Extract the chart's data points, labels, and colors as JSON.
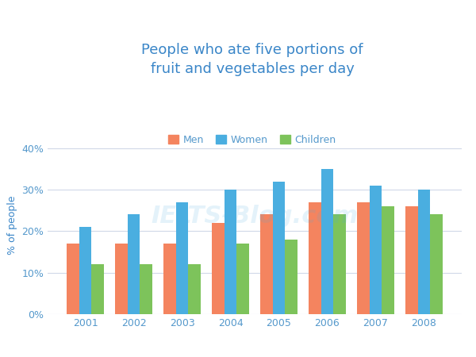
{
  "title": "People who ate five portions of\nfruit and vegetables per day",
  "ylabel": "% of people",
  "years": [
    2001,
    2002,
    2003,
    2004,
    2005,
    2006,
    2007,
    2008
  ],
  "men": [
    17,
    17,
    17,
    22,
    24,
    27,
    27,
    26
  ],
  "women": [
    21,
    24,
    27,
    30,
    32,
    35,
    31,
    30
  ],
  "children": [
    12,
    12,
    12,
    17,
    18,
    24,
    26,
    24
  ],
  "colors": {
    "men": "#F4845F",
    "women": "#4AAEE0",
    "children": "#7DC35B"
  },
  "yticks": [
    0,
    10,
    20,
    30,
    40
  ],
  "ytick_labels": [
    "0%",
    "10%",
    "20%",
    "30%",
    "40%"
  ],
  "ylim": [
    0,
    43
  ],
  "background_color": "#ffffff",
  "title_color": "#3A86C8",
  "axis_label_color": "#3A86C8",
  "tick_color": "#5599CC",
  "grid_color": "#d0d8e8",
  "legend_labels": [
    "Men",
    "Women",
    "Children"
  ],
  "title_fontsize": 13,
  "ylabel_fontsize": 9,
  "tick_fontsize": 9,
  "legend_fontsize": 9,
  "bar_width": 0.26
}
